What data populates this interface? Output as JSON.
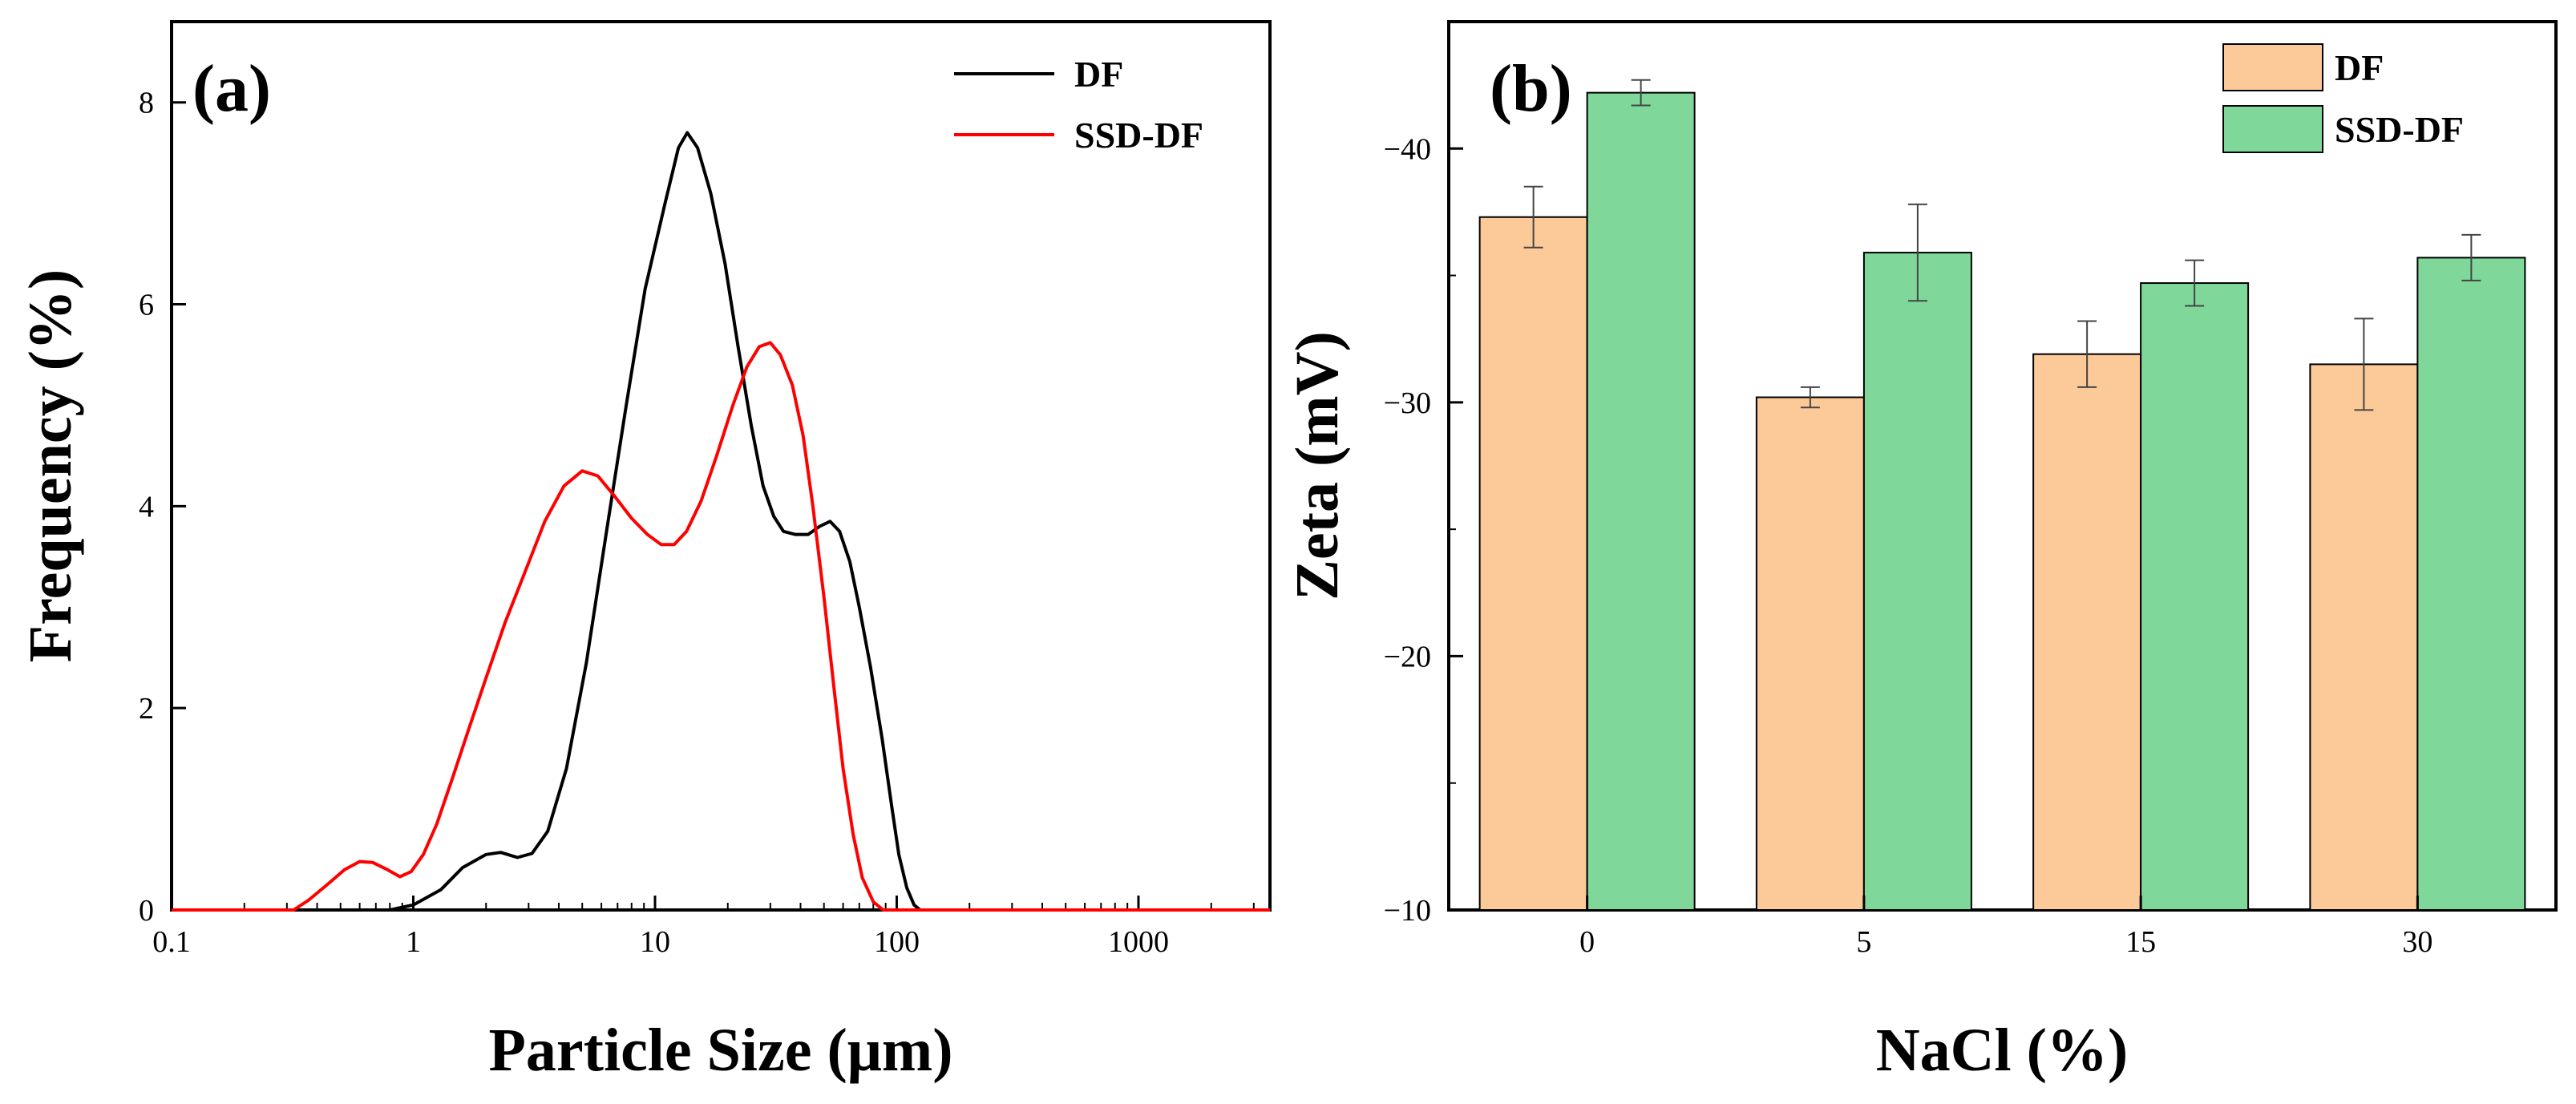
{
  "chart_data": [
    {
      "id": "a",
      "type": "line",
      "panel_label": "(a)",
      "xlabel": "Particle Size (μm)",
      "ylabel": "Frequency (%)",
      "xscale": "log",
      "xlim": [
        0.1,
        3500
      ],
      "ylim": [
        0,
        8.8
      ],
      "x_ticks": [
        0.1,
        1,
        10,
        100,
        1000
      ],
      "x_tick_labels": [
        "0.1",
        "1",
        "10",
        "100",
        "1000"
      ],
      "y_ticks": [
        0,
        2,
        4,
        6,
        8
      ],
      "y_tick_labels": [
        "0",
        "2",
        "4",
        "6",
        "8"
      ],
      "legend_position": "top-right",
      "series": [
        {
          "name": "DF",
          "color": "#000000",
          "points": [
            [
              0.1,
              0
            ],
            [
              0.8,
              0
            ],
            [
              1,
              0.05
            ],
            [
              1.3,
              0.2
            ],
            [
              1.6,
              0.42
            ],
            [
              2,
              0.55
            ],
            [
              2.3,
              0.57
            ],
            [
              2.7,
              0.52
            ],
            [
              3.1,
              0.56
            ],
            [
              3.6,
              0.78
            ],
            [
              4.3,
              1.4
            ],
            [
              5.2,
              2.45
            ],
            [
              6.3,
              3.75
            ],
            [
              7.6,
              5.0
            ],
            [
              9.1,
              6.15
            ],
            [
              11,
              7.0
            ],
            [
              12.5,
              7.55
            ],
            [
              13.6,
              7.7
            ],
            [
              15,
              7.55
            ],
            [
              17,
              7.1
            ],
            [
              19.5,
              6.4
            ],
            [
              22,
              5.6
            ],
            [
              25,
              4.8
            ],
            [
              28,
              4.2
            ],
            [
              31,
              3.9
            ],
            [
              34,
              3.75
            ],
            [
              38,
              3.72
            ],
            [
              43,
              3.72
            ],
            [
              48,
              3.8
            ],
            [
              53,
              3.85
            ],
            [
              58,
              3.75
            ],
            [
              64,
              3.45
            ],
            [
              70,
              3.0
            ],
            [
              78,
              2.4
            ],
            [
              87,
              1.7
            ],
            [
              95,
              1.05
            ],
            [
              102,
              0.55
            ],
            [
              110,
              0.22
            ],
            [
              118,
              0.05
            ],
            [
              125,
              0
            ],
            [
              3500,
              0
            ]
          ]
        },
        {
          "name": "SSD-DF",
          "color": "#ff0000",
          "points": [
            [
              0.1,
              0
            ],
            [
              0.32,
              0
            ],
            [
              0.37,
              0.1
            ],
            [
              0.44,
              0.25
            ],
            [
              0.52,
              0.4
            ],
            [
              0.6,
              0.48
            ],
            [
              0.68,
              0.47
            ],
            [
              0.78,
              0.4
            ],
            [
              0.88,
              0.33
            ],
            [
              0.98,
              0.38
            ],
            [
              1.1,
              0.55
            ],
            [
              1.25,
              0.85
            ],
            [
              1.45,
              1.3
            ],
            [
              1.7,
              1.8
            ],
            [
              2,
              2.3
            ],
            [
              2.4,
              2.85
            ],
            [
              2.9,
              3.35
            ],
            [
              3.5,
              3.85
            ],
            [
              4.2,
              4.2
            ],
            [
              5,
              4.35
            ],
            [
              5.8,
              4.3
            ],
            [
              6.8,
              4.1
            ],
            [
              8,
              3.88
            ],
            [
              9.3,
              3.72
            ],
            [
              10.6,
              3.62
            ],
            [
              12,
              3.62
            ],
            [
              13.5,
              3.75
            ],
            [
              15.5,
              4.05
            ],
            [
              18,
              4.5
            ],
            [
              21,
              5.0
            ],
            [
              24,
              5.38
            ],
            [
              27,
              5.58
            ],
            [
              30,
              5.62
            ],
            [
              33,
              5.5
            ],
            [
              37,
              5.2
            ],
            [
              41,
              4.7
            ],
            [
              45,
              4.0
            ],
            [
              50,
              3.1
            ],
            [
              55,
              2.2
            ],
            [
              60,
              1.4
            ],
            [
              66,
              0.75
            ],
            [
              72,
              0.32
            ],
            [
              80,
              0.08
            ],
            [
              88,
              0
            ],
            [
              3500,
              0
            ]
          ]
        }
      ]
    },
    {
      "id": "b",
      "type": "bar",
      "panel_label": "(b)",
      "xlabel": "NaCl (%)",
      "ylabel": "Zeta (mV)",
      "ylim": [
        -10,
        -45
      ],
      "y_inverted": true,
      "y_ticks": [
        -10,
        -20,
        -30,
        -40
      ],
      "y_tick_labels": [
        "−10",
        "−20",
        "−30",
        "−40"
      ],
      "categories": [
        "0",
        "5",
        "15",
        "30"
      ],
      "legend_position": "top-right",
      "series": [
        {
          "name": "DF",
          "color": "#fcc998",
          "values": [
            -37.3,
            -30.2,
            -31.9,
            -31.5
          ],
          "errors": [
            1.2,
            0.4,
            1.3,
            1.8
          ]
        },
        {
          "name": "SSD-DF",
          "color": "#7fd89a",
          "values": [
            -42.2,
            -35.9,
            -34.7,
            -35.7
          ],
          "errors": [
            0.5,
            1.9,
            0.9,
            0.9
          ]
        }
      ]
    }
  ]
}
